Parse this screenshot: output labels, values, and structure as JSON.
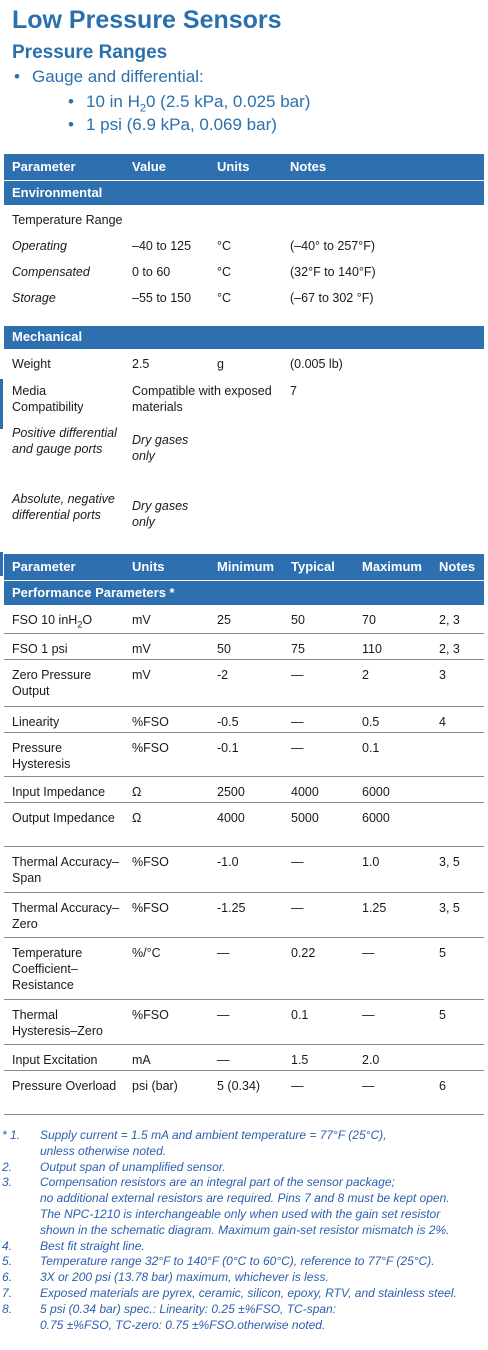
{
  "header": {
    "title": "Low Pressure Sensors",
    "subtitle": "Pressure Ranges",
    "bullet1": "Gauge and differential:",
    "range1_pre": "10 in H",
    "range1_sub": "2",
    "range1_post": "0 (2.5 kPa, 0.025 bar)",
    "range2": "1 psi (6.9 kPa, 0.069 bar)"
  },
  "table1": {
    "headers": [
      "Parameter",
      "Value",
      "Units",
      "Notes"
    ],
    "environmental_label": "Environmental",
    "temp_range_label": "Temperature Range",
    "env_rows": [
      [
        "Operating",
        "–40 to 125",
        "°C",
        "(–40° to 257°F)"
      ],
      [
        "Compensated",
        "0 to 60",
        "°C",
        "(32°F to 140°F)"
      ],
      [
        "Storage",
        "–55 to 150",
        "°C",
        "(–67 to 302 °F)"
      ]
    ],
    "mechanical_label": "Mechanical",
    "mech_rows": [
      [
        "Weight",
        "2.5",
        "g",
        "(0.005 lb)"
      ],
      [
        "Media Compatibility",
        "Compatible with exposed materials",
        "",
        "7"
      ],
      [
        "Positive differential and gauge ports",
        "Dry gases only",
        "",
        ""
      ],
      [
        "Absolute, negative differential ports",
        "Dry gases only",
        "",
        ""
      ]
    ]
  },
  "table2": {
    "headers": [
      "Parameter",
      "Units",
      "Minimum",
      "Typical",
      "Maximum",
      "Notes"
    ],
    "section_label": "Performance Parameters *",
    "fso10_pre": "FSO 10 inH",
    "fso10_sub": "2",
    "fso10_post": "O",
    "rows": [
      [
        "FSO 10 inH2O",
        "mV",
        "25",
        "50",
        "70",
        "2, 3"
      ],
      [
        "FSO 1 psi",
        "mV",
        "50",
        "75",
        "110",
        "2, 3"
      ],
      [
        "Zero Pressure Output",
        "mV",
        "-2",
        "—",
        "2",
        "3"
      ],
      [
        "Linearity",
        "%FSO",
        "-0.5",
        "—",
        "0.5",
        "4"
      ],
      [
        "Pressure Hysteresis",
        "%FSO",
        "-0.1",
        "—",
        "0.1",
        ""
      ],
      [
        "Input Impedance",
        "Ω",
        "2500",
        "4000",
        "6000",
        ""
      ],
      [
        "Output Impedance",
        "Ω",
        "4000",
        "5000",
        "6000",
        ""
      ],
      [
        "Thermal Accuracy–Span",
        "%FSO",
        "-1.0",
        "—",
        "1.0",
        "3, 5"
      ],
      [
        "Thermal Accuracy–Zero",
        "%FSO",
        "-1.25",
        "—",
        "1.25",
        "3, 5"
      ],
      [
        "Temperature Coefficient–Resistance",
        "%/°C",
        "—",
        "0.22",
        "—",
        "5"
      ],
      [
        "Thermal Hysteresis–Zero",
        "%FSO",
        "—",
        "0.1",
        "—",
        "5"
      ],
      [
        "Input Excitation",
        "mA",
        "—",
        "1.5",
        "2.0",
        ""
      ],
      [
        "Pressure Overload",
        "psi (bar)",
        "5 (0.34)",
        "—",
        "—",
        "6"
      ]
    ]
  },
  "footnotes": [
    {
      "num": "* 1.",
      "lines": [
        "Supply current = 1.5 mA and ambient temperature = 77°F (25°C),",
        "unless otherwise noted."
      ]
    },
    {
      "num": "2.",
      "lines": [
        "Output span of unamplified sensor."
      ]
    },
    {
      "num": "3.",
      "lines": [
        "Compensation resistors are an integral part of the sensor package;",
        "no additional external resistors are required. Pins 7 and 8 must be kept open.",
        "The NPC-1210 is interchangeable only when used with the gain set resistor",
        "shown in the schematic diagram. Maximum gain-set resistor mismatch is 2%."
      ]
    },
    {
      "num": "4.",
      "lines": [
        "Best fit straight line."
      ]
    },
    {
      "num": "5.",
      "lines": [
        "Temperature range 32°F to 140°F (0°C to 60°C), reference to 77°F (25°C)."
      ]
    },
    {
      "num": "6.",
      "lines": [
        "3X or 200 psi (13.78 bar) maximum, whichever is less."
      ]
    },
    {
      "num": "7.",
      "lines": [
        "Exposed materials are pyrex, ceramic, silicon, epoxy, RTV, and stainless steel."
      ]
    },
    {
      "num": "8.",
      "lines": [
        "5 psi (0.34 bar) spec.: Linearity: 0.25 ±%FSO, TC-span:",
        "0.75 ±%FSO, TC-zero: 0.75 ±%FSO.otherwise noted."
      ]
    }
  ]
}
